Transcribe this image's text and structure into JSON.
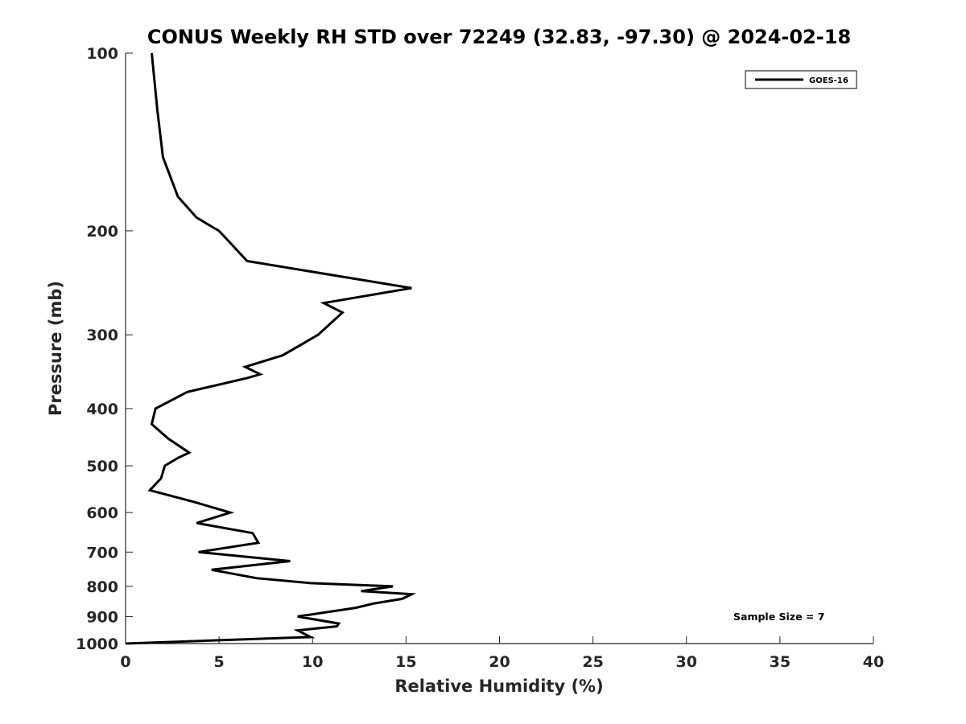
{
  "chart_data": {
    "type": "line",
    "title": "CONUS Weekly RH STD over 72249 (32.83, -97.30) @ 2024-02-18",
    "xlabel": "Relative Humidity (%)",
    "ylabel": "Pressure (mb)",
    "xlim": [
      0,
      40
    ],
    "ylim": [
      1000,
      100
    ],
    "y_scale": "log",
    "y_reversed": true,
    "grid": false,
    "legend_position": "top-right",
    "x_ticks": [
      "0",
      "5",
      "10",
      "15",
      "20",
      "25",
      "30",
      "35",
      "40"
    ],
    "y_ticks": [
      "100",
      "200",
      "300",
      "400",
      "500",
      "600",
      "700",
      "800",
      "900",
      "1000"
    ],
    "annotation": "Sample Size = 7",
    "line_color": "#000000",
    "series": [
      {
        "name": "GOES-16",
        "points": [
          [
            1.4,
            100
          ],
          [
            1.7,
            125
          ],
          [
            2.0,
            150
          ],
          [
            2.8,
            175
          ],
          [
            3.8,
            190
          ],
          [
            5.0,
            200
          ],
          [
            6.5,
            225
          ],
          [
            15.3,
            250
          ],
          [
            10.6,
            265
          ],
          [
            11.6,
            275
          ],
          [
            10.3,
            300
          ],
          [
            8.4,
            325
          ],
          [
            6.4,
            340
          ],
          [
            7.2,
            350
          ],
          [
            6.5,
            355
          ],
          [
            3.3,
            375
          ],
          [
            1.6,
            400
          ],
          [
            1.4,
            425
          ],
          [
            2.3,
            450
          ],
          [
            3.4,
            475
          ],
          [
            2.8,
            485
          ],
          [
            2.1,
            500
          ],
          [
            1.9,
            525
          ],
          [
            1.3,
            550
          ],
          [
            3.6,
            575
          ],
          [
            5.6,
            600
          ],
          [
            3.8,
            625
          ],
          [
            6.8,
            650
          ],
          [
            7.1,
            675
          ],
          [
            3.9,
            700
          ],
          [
            8.8,
            725
          ],
          [
            4.6,
            750
          ],
          [
            7.0,
            775
          ],
          [
            9.9,
            790
          ],
          [
            14.3,
            800
          ],
          [
            12.6,
            815
          ],
          [
            15.3,
            825
          ],
          [
            14.8,
            840
          ],
          [
            13.3,
            855
          ],
          [
            12.3,
            870
          ],
          [
            9.2,
            900
          ],
          [
            11.4,
            925
          ],
          [
            11.3,
            935
          ],
          [
            9.2,
            950
          ],
          [
            9.9,
            975
          ],
          [
            0.0,
            1000
          ]
        ]
      }
    ]
  }
}
